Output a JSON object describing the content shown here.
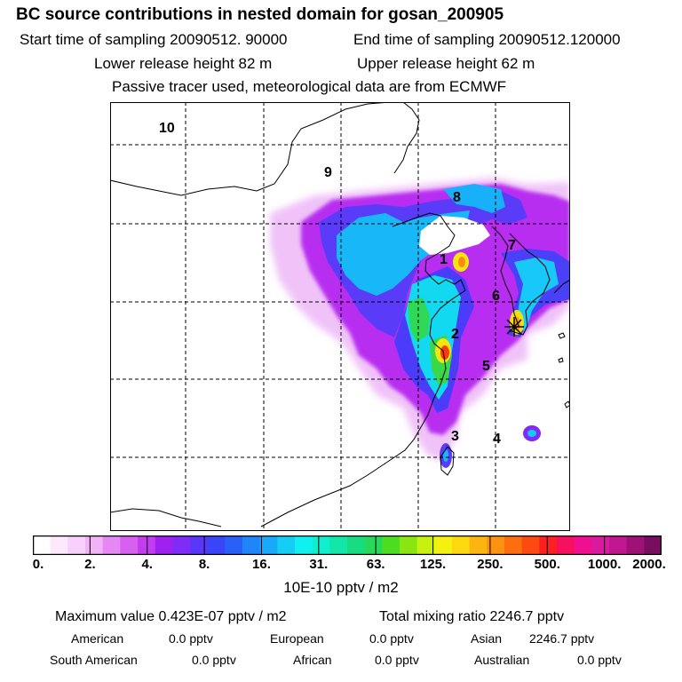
{
  "header": {
    "title": "BC  source contributions in nested domain for gosan_200905",
    "start_label": "Start time of sampling 20090512. 90000",
    "end_label": "End time of sampling 20090512.120000",
    "lower_label": "Lower release height   82 m",
    "upper_label": "Upper release height   62 m",
    "note": "Passive tracer used, meteorological data are from ECMWF"
  },
  "map": {
    "region_labels": [
      "10",
      "9",
      "8",
      "7",
      "1",
      "6",
      "2",
      "5",
      "3",
      "4"
    ],
    "receptor_marker": "star-icon"
  },
  "colorbar": {
    "colors": [
      "#ffffff",
      "#fde8fe",
      "#f8d0fc",
      "#f2b2f8",
      "#e688f4",
      "#d760f0",
      "#c33cf0",
      "#a020f0",
      "#7f2cf6",
      "#5a36f8",
      "#3a44f8",
      "#2860f8",
      "#1e86f8",
      "#18aaf8",
      "#14cef4",
      "#10f0f0",
      "#10eed0",
      "#12e6a8",
      "#18dc80",
      "#28d858",
      "#4cdc20",
      "#8ae610",
      "#c8f010",
      "#f4f010",
      "#fcd810",
      "#fcb410",
      "#fc9210",
      "#fc6e10",
      "#fc4a10",
      "#fc2020",
      "#f61060",
      "#ee1090",
      "#d81aa0",
      "#c01690",
      "#9e1278",
      "#780e60"
    ],
    "tick_labels": [
      "0.",
      "2.",
      "4.",
      "8.",
      "16.",
      "31.",
      "63.",
      "125.",
      "250.",
      "500.",
      "1000.",
      "2000."
    ],
    "unit": "10E-10 pptv / m2"
  },
  "stats": {
    "maximum": "Maximum value  0.423E-07 pptv / m2",
    "total": "Total mixing ratio     2246.7 pptv",
    "american_label": "American",
    "american_value": "0.0 pptv",
    "european_label": "European",
    "european_value": "0.0 pptv",
    "asian_label": "Asian",
    "asian_value": "2246.7 pptv",
    "south_american_label": "South American",
    "south_american_value": "0.0 pptv",
    "african_label": "African",
    "african_value": "0.0 pptv",
    "australian_label": "Australian",
    "australian_value": "0.0 pptv"
  }
}
